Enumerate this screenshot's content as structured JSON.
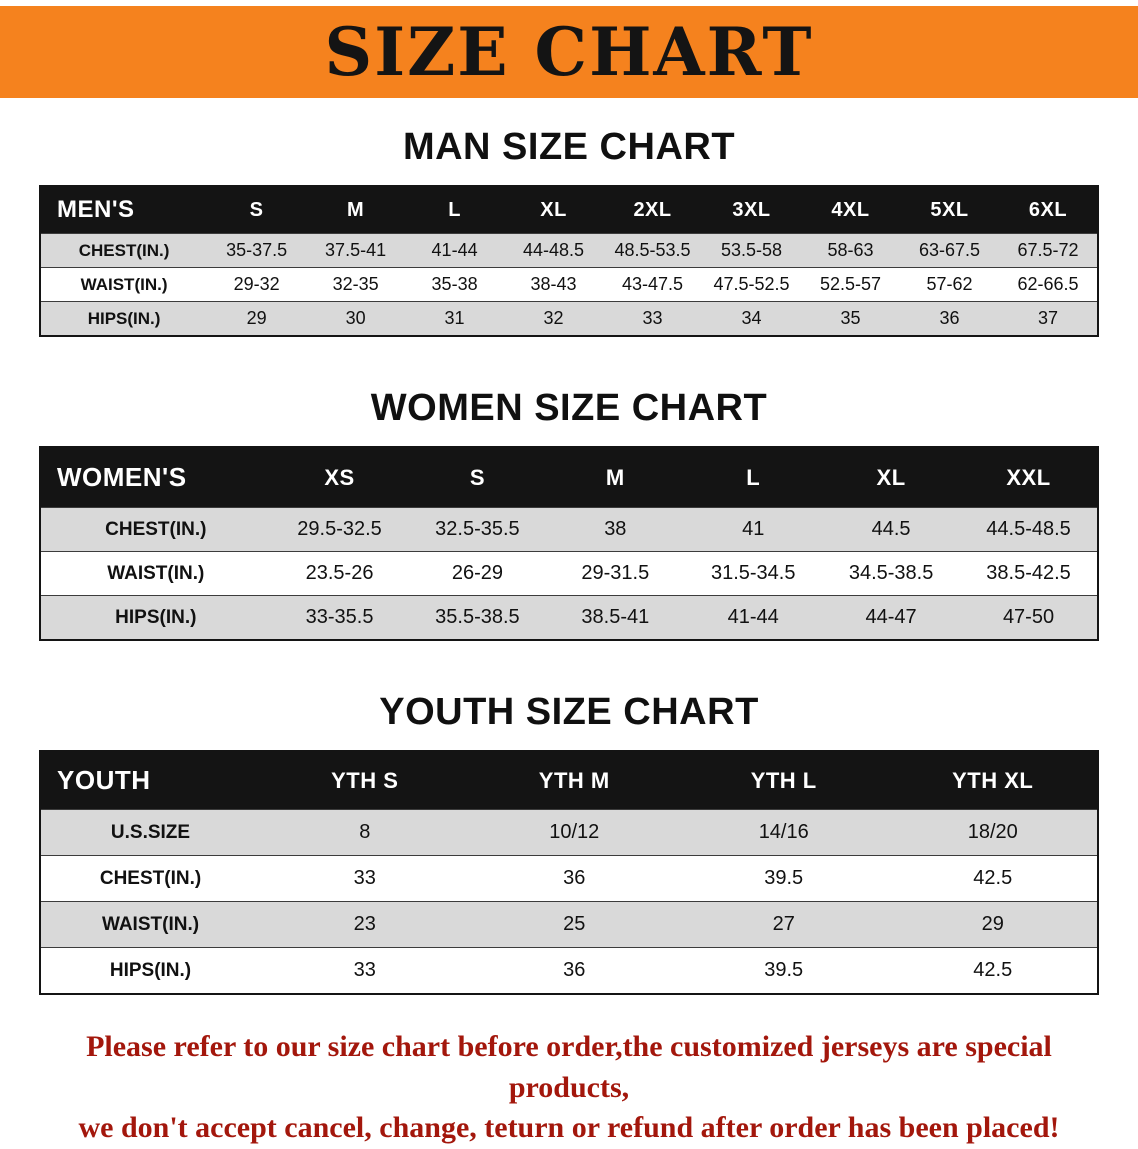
{
  "colors": {
    "banner-bg": "#F5821E",
    "table-header-bg": "#141414",
    "row-stripe": "#D9D9D9",
    "note-red": "#A3170C"
  },
  "banner": {
    "title": "SIZE CHART"
  },
  "sections": [
    {
      "heading": "MAN SIZE CHART",
      "table": {
        "title": "MEN'S",
        "columns": [
          "S",
          "M",
          "L",
          "XL",
          "2XL",
          "3XL",
          "4XL",
          "5XL",
          "6XL"
        ],
        "rows": [
          {
            "label": "CHEST(IN.)",
            "values": [
              "35-37.5",
              "37.5-41",
              "41-44",
              "44-48.5",
              "48.5-53.5",
              "53.5-58",
              "58-63",
              "63-67.5",
              "67.5-72"
            ]
          },
          {
            "label": "WAIST(IN.)",
            "values": [
              "29-32",
              "32-35",
              "35-38",
              "38-43",
              "43-47.5",
              "47.5-52.5",
              "52.5-57",
              "57-62",
              "62-66.5"
            ]
          },
          {
            "label": "HIPS(IN.)",
            "values": [
              "29",
              "30",
              "31",
              "32",
              "33",
              "34",
              "35",
              "36",
              "37"
            ]
          }
        ]
      }
    },
    {
      "heading": "WOMEN SIZE CHART",
      "table": {
        "title": "WOMEN'S",
        "columns": [
          "XS",
          "S",
          "M",
          "L",
          "XL",
          "XXL"
        ],
        "rows": [
          {
            "label": "CHEST(IN.)",
            "values": [
              "29.5-32.5",
              "32.5-35.5",
              "38",
              "41",
              "44.5",
              "44.5-48.5"
            ]
          },
          {
            "label": "WAIST(IN.)",
            "values": [
              "23.5-26",
              "26-29",
              "29-31.5",
              "31.5-34.5",
              "34.5-38.5",
              "38.5-42.5"
            ]
          },
          {
            "label": "HIPS(IN.)",
            "values": [
              "33-35.5",
              "35.5-38.5",
              "38.5-41",
              "41-44",
              "44-47",
              "47-50"
            ]
          }
        ]
      }
    },
    {
      "heading": "YOUTH SIZE CHART",
      "table": {
        "title": "YOUTH",
        "columns": [
          "YTH S",
          "YTH M",
          "YTH L",
          "YTH XL"
        ],
        "rows": [
          {
            "label": "U.S.SIZE",
            "values": [
              "8",
              "10/12",
              "14/16",
              "18/20"
            ]
          },
          {
            "label": "CHEST(IN.)",
            "values": [
              "33",
              "36",
              "39.5",
              "42.5"
            ]
          },
          {
            "label": "WAIST(IN.)",
            "values": [
              "23",
              "25",
              "27",
              "29"
            ]
          },
          {
            "label": "HIPS(IN.)",
            "values": [
              "33",
              "36",
              "39.5",
              "42.5"
            ]
          }
        ]
      }
    }
  ],
  "note": {
    "line1": "Please refer to our size chart before order,the customized jerseys are special products,",
    "line2": "we don't accept cancel, change, teturn or refund after order has been placed!"
  }
}
